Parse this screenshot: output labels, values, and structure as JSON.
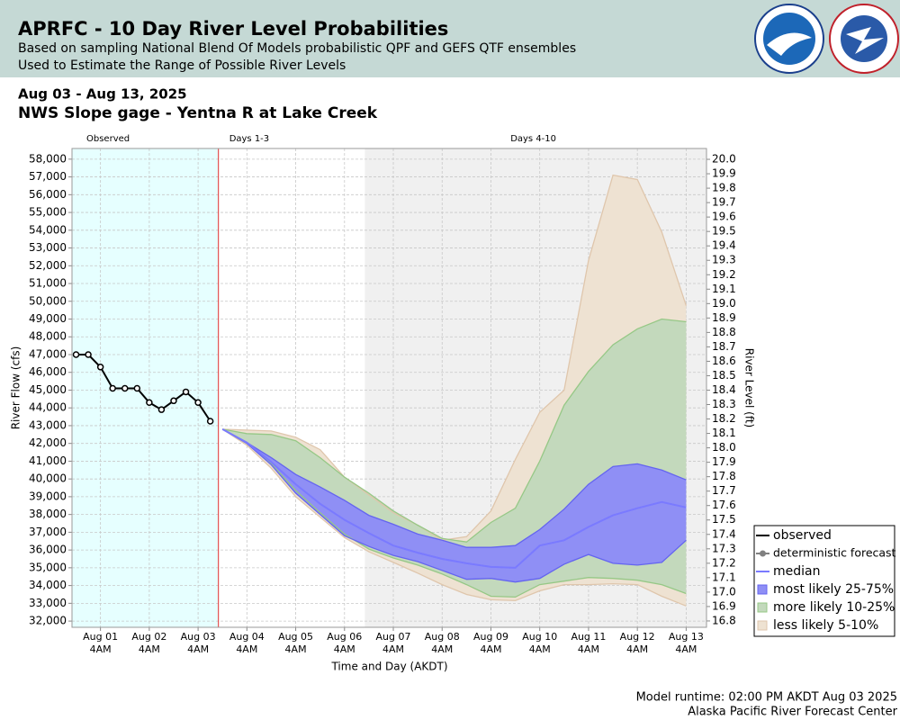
{
  "chart_data": {
    "type": "area",
    "title": "APRFC - 10 Day River Level Probabilities",
    "subtitle": [
      "Based on sampling National Blend Of Models probabilistic QPF and GEFS QTF ensembles",
      "Used to Estimate the Range of Possible River Levels"
    ],
    "date_range": "Aug 03 - Aug 13, 2025",
    "gage": "NWS Slope gage - Yentna R at Lake Creek",
    "xlabel": "Time and Day (AKDT)",
    "ylabel": "River Flow (cfs)",
    "y2label": "River Level (ft)",
    "footer": [
      "Model runtime: 02:00 PM AKDT Aug 03 2025",
      "Alaska Pacific River Forecast Center"
    ],
    "xlim": [
      "2025-07-31T14:00",
      "2025-08-13T14:00"
    ],
    "xticks": [
      {
        "value": "2025-08-01T04:00",
        "label": "Aug 01"
      },
      {
        "value": "2025-08-02T04:00",
        "label": "Aug 02"
      },
      {
        "value": "2025-08-03T04:00",
        "label": "Aug 03"
      },
      {
        "value": "2025-08-04T04:00",
        "label": "Aug 04"
      },
      {
        "value": "2025-08-05T04:00",
        "label": "Aug 05"
      },
      {
        "value": "2025-08-06T04:00",
        "label": "Aug 06"
      },
      {
        "value": "2025-08-07T04:00",
        "label": "Aug 07"
      },
      {
        "value": "2025-08-08T04:00",
        "label": "Aug 08"
      },
      {
        "value": "2025-08-09T04:00",
        "label": "Aug 09"
      },
      {
        "value": "2025-08-10T04:00",
        "label": "Aug 10"
      },
      {
        "value": "2025-08-11T04:00",
        "label": "Aug 11"
      },
      {
        "value": "2025-08-12T04:00",
        "label": "Aug 12"
      },
      {
        "value": "2025-08-13T04:00",
        "label": "Aug 13"
      }
    ],
    "xtick_sublabels": [
      "4AM",
      "4AM",
      "4AM",
      "4AM",
      "4AM",
      "4AM",
      "4AM",
      "4AM",
      "4AM",
      "4AM",
      "4AM",
      "4AM",
      "4AM"
    ],
    "ylim": [
      31650,
      58600
    ],
    "yticks": [
      {
        "value": 32000,
        "label": "32,000"
      },
      {
        "value": 33000,
        "label": "33,000"
      },
      {
        "value": 34000,
        "label": "34,000"
      },
      {
        "value": 35000,
        "label": "35,000"
      },
      {
        "value": 36000,
        "label": "36,000"
      },
      {
        "value": 37000,
        "label": "37,000"
      },
      {
        "value": 38000,
        "label": "38,000"
      },
      {
        "value": 39000,
        "label": "39,000"
      },
      {
        "value": 40000,
        "label": "40,000"
      },
      {
        "value": 41000,
        "label": "41,000"
      },
      {
        "value": 42000,
        "label": "42,000"
      },
      {
        "value": 43000,
        "label": "43,000"
      },
      {
        "value": 44000,
        "label": "44,000"
      },
      {
        "value": 45000,
        "label": "45,000"
      },
      {
        "value": 46000,
        "label": "46,000"
      },
      {
        "value": 47000,
        "label": "47,000"
      },
      {
        "value": 48000,
        "label": "48,000"
      },
      {
        "value": 49000,
        "label": "49,000"
      },
      {
        "value": 50000,
        "label": "50,000"
      },
      {
        "value": 51000,
        "label": "51,000"
      },
      {
        "value": 52000,
        "label": "52,000"
      },
      {
        "value": 53000,
        "label": "53,000"
      },
      {
        "value": 54000,
        "label": "54,000"
      },
      {
        "value": 55000,
        "label": "55,000"
      },
      {
        "value": 56000,
        "label": "56,000"
      },
      {
        "value": 57000,
        "label": "57,000"
      },
      {
        "value": 58000,
        "label": "58,000"
      }
    ],
    "y2lim": [
      16.756,
      20.075
    ],
    "y2ticks": [
      16.8,
      16.9,
      {
        "value": 17,
        "label": "17.0"
      },
      17.1,
      17.2,
      17.3,
      17.4,
      17.5,
      17.6,
      17.7,
      17.8,
      17.9,
      {
        "value": 18,
        "label": "18.0"
      },
      18.1,
      18.2,
      18.3,
      18.4,
      18.5,
      18.6,
      18.7,
      18.8,
      18.9,
      {
        "value": 19,
        "label": "19.0"
      },
      19.1,
      19.2,
      19.3,
      19.4,
      19.5,
      19.6,
      19.7,
      19.8,
      19.9,
      {
        "value": 20,
        "label": "20.0"
      }
    ],
    "grid": true,
    "legend": "lower right",
    "regions": [
      {
        "label": "Observed",
        "start": "2025-07-31T14:00",
        "end": "2025-08-03T14:00",
        "color": "#e6ffff"
      },
      {
        "label": "Days 1-3",
        "start": "2025-08-03T14:00",
        "end": "2025-08-06T14:00",
        "color": "#ffffff"
      },
      {
        "label": "Days 4-10",
        "start": "2025-08-06T14:00",
        "end": "2025-08-13T14:00",
        "color": "#f0f0f0"
      }
    ],
    "now_line": {
      "x": "2025-08-03T14:00",
      "color": "#e03030"
    },
    "x": [
      "2025-08-03T16:00",
      "2025-08-04T04:00",
      "2025-08-04T16:00",
      "2025-08-05T04:00",
      "2025-08-05T16:00",
      "2025-08-06T04:00",
      "2025-08-06T16:00",
      "2025-08-07T04:00",
      "2025-08-07T16:00",
      "2025-08-08T04:00",
      "2025-08-08T16:00",
      "2025-08-09T04:00",
      "2025-08-09T16:00",
      "2025-08-10T04:00",
      "2025-08-10T16:00",
      "2025-08-11T04:00",
      "2025-08-11T16:00",
      "2025-08-12T04:00",
      "2025-08-12T16:00",
      "2025-08-13T04:00"
    ],
    "series": [
      {
        "name": "observed",
        "color": "#000000",
        "marker": "open-circle",
        "x": [
          "2025-07-31T16:00",
          "2025-07-31T22:00",
          "2025-08-01T04:00",
          "2025-08-01T10:00",
          "2025-08-01T16:00",
          "2025-08-01T22:00",
          "2025-08-02T04:00",
          "2025-08-02T10:00",
          "2025-08-02T16:00",
          "2025-08-02T22:00",
          "2025-08-03T04:00",
          "2025-08-03T10:00"
        ],
        "values": [
          47000,
          47000,
          46300,
          45100,
          45100,
          45100,
          44300,
          43900,
          44400,
          44900,
          44300,
          43250
        ]
      },
      {
        "name": "deterministic forecast",
        "color": "#808080",
        "marker": "dot"
      },
      {
        "name": "median",
        "color": "#7a7aff",
        "values": [
          42800,
          42050,
          40950,
          39700,
          38600,
          37700,
          36950,
          36250,
          35850,
          35500,
          35250,
          35050,
          35000,
          36250,
          36550,
          37300,
          37950,
          38350,
          38700,
          38400
        ]
      },
      {
        "name": "most likely 25-75%",
        "color": "#8f8ff5",
        "edge": "#6464f0",
        "lower": [
          42800,
          42000,
          40800,
          39200,
          38000,
          36800,
          36200,
          35700,
          35350,
          34850,
          34350,
          34400,
          34200,
          34400,
          35200,
          35750,
          35250,
          35150,
          35300,
          36550
        ],
        "upper": [
          42800,
          42050,
          41200,
          40250,
          39550,
          38800,
          37950,
          37450,
          36900,
          36550,
          36150,
          36150,
          36250,
          37150,
          38300,
          39700,
          40700,
          40850,
          40500,
          39950
        ]
      },
      {
        "name": "more likely 10-25%",
        "color": "#c3d9bc",
        "edge": "#96c886",
        "lower": [
          42800,
          42000,
          40850,
          39350,
          38100,
          36900,
          36050,
          35550,
          35150,
          34650,
          34050,
          33400,
          33350,
          34050,
          34250,
          34450,
          34400,
          34300,
          34050,
          33550
        ],
        "upper": [
          42800,
          42550,
          42500,
          42150,
          41200,
          40100,
          39200,
          38200,
          37400,
          36650,
          36450,
          37550,
          38350,
          41000,
          44150,
          46050,
          47550,
          48450,
          49000,
          48850
        ]
      },
      {
        "name": "less likely 5-10%",
        "color": "#eee2d2",
        "edge": "#dfc6ac",
        "lower": [
          42800,
          41900,
          40600,
          39000,
          37850,
          36700,
          35900,
          35300,
          34700,
          34050,
          33500,
          33200,
          33150,
          33700,
          34050,
          34050,
          34100,
          34050,
          33400,
          32850
        ],
        "upper": [
          42800,
          42750,
          42700,
          42350,
          41650,
          40100,
          39100,
          38100,
          37400,
          36550,
          36750,
          38200,
          41100,
          43750,
          45000,
          52300,
          57100,
          56850,
          53900,
          49750
        ]
      }
    ]
  }
}
